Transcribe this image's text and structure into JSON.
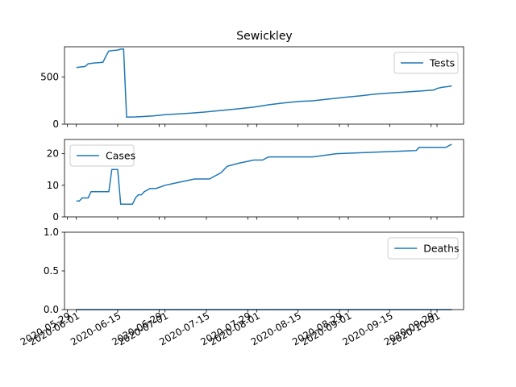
{
  "title": "Sewickley",
  "line_color": "#1f77b4",
  "chart_data": [
    {
      "type": "line",
      "panel": "top",
      "xlim": [
        "2020-05-28",
        "2020-10-10"
      ],
      "ylim": [
        0,
        820
      ],
      "yticks": [
        0,
        500
      ],
      "legend": {
        "position": "upper right",
        "entries": [
          "Tests"
        ]
      },
      "series": [
        {
          "name": "Tests",
          "x": [
            "2020-06-01",
            "2020-06-02",
            "2020-06-04",
            "2020-06-05",
            "2020-06-07",
            "2020-06-08",
            "2020-06-10",
            "2020-06-11",
            "2020-06-12",
            "2020-06-13",
            "2020-06-15",
            "2020-06-16",
            "2020-06-17",
            "2020-06-18",
            "2020-06-21",
            "2020-06-23",
            "2020-06-27",
            "2020-07-01",
            "2020-07-05",
            "2020-07-10",
            "2020-07-15",
            "2020-07-20",
            "2020-07-25",
            "2020-07-31",
            "2020-08-05",
            "2020-08-10",
            "2020-08-15",
            "2020-08-20",
            "2020-08-25",
            "2020-08-31",
            "2020-09-05",
            "2020-09-10",
            "2020-09-15",
            "2020-09-20",
            "2020-09-25",
            "2020-09-30",
            "2020-10-01",
            "2020-10-03",
            "2020-10-05",
            "2020-10-06"
          ],
          "y": [
            600,
            605,
            612,
            640,
            648,
            650,
            655,
            720,
            775,
            780,
            785,
            795,
            795,
            75,
            77,
            80,
            88,
            100,
            108,
            118,
            130,
            145,
            160,
            180,
            205,
            225,
            240,
            248,
            265,
            285,
            300,
            318,
            330,
            340,
            350,
            362,
            378,
            392,
            400,
            405
          ]
        }
      ]
    },
    {
      "type": "line",
      "panel": "middle",
      "xlim": [
        "2020-05-28",
        "2020-10-10"
      ],
      "ylim": [
        0,
        24.5
      ],
      "yticks": [
        0,
        10,
        20
      ],
      "legend": {
        "position": "upper left",
        "entries": [
          "Cases"
        ]
      },
      "series": [
        {
          "name": "Cases",
          "x": [
            "2020-06-01",
            "2020-06-02",
            "2020-06-03",
            "2020-06-05",
            "2020-06-06",
            "2020-06-12",
            "2020-06-13",
            "2020-06-15",
            "2020-06-16",
            "2020-06-20",
            "2020-06-21",
            "2020-06-22",
            "2020-06-23",
            "2020-06-24",
            "2020-06-26",
            "2020-06-28",
            "2020-07-01",
            "2020-07-06",
            "2020-07-11",
            "2020-07-16",
            "2020-07-20",
            "2020-07-22",
            "2020-07-26",
            "2020-07-31",
            "2020-08-03",
            "2020-08-05",
            "2020-08-20",
            "2020-08-28",
            "2020-09-24",
            "2020-09-25",
            "2020-10-04",
            "2020-10-06"
          ],
          "y": [
            5,
            5,
            6,
            6,
            8,
            8,
            15,
            15,
            4,
            4,
            6,
            7,
            7,
            8,
            9,
            9,
            10,
            11,
            12,
            12,
            14,
            16,
            17,
            18,
            18,
            19,
            19,
            20,
            21,
            22,
            22,
            23
          ]
        }
      ]
    },
    {
      "type": "line",
      "panel": "bottom",
      "xlim": [
        "2020-05-28",
        "2020-10-10"
      ],
      "ylim": [
        0,
        1
      ],
      "yticks": [
        0.0,
        0.5,
        1.0
      ],
      "xticks": [
        "2020-05-29",
        "2020-06-01",
        "2020-06-15",
        "2020-06-29",
        "2020-07-01",
        "2020-07-15",
        "2020-07-29",
        "2020-08-01",
        "2020-08-15",
        "2020-08-29",
        "2020-09-01",
        "2020-09-15",
        "2020-09-29",
        "2020-10-01"
      ],
      "legend": {
        "position": "upper right",
        "entries": [
          "Deaths"
        ]
      },
      "series": [
        {
          "name": "Deaths",
          "x": [
            "2020-06-01",
            "2020-10-06"
          ],
          "y": [
            0,
            0
          ]
        }
      ]
    }
  ]
}
